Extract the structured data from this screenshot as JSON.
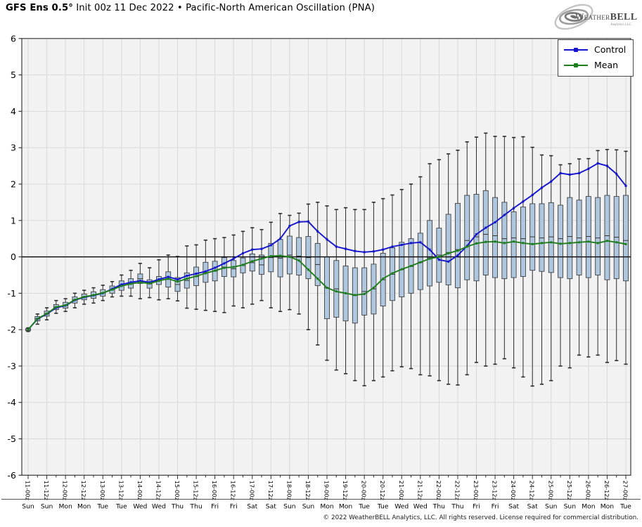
{
  "header": {
    "title_bold": "GFS Ens 0.5°",
    "title_rest": " Init 00z 11 Dec 2022 • Pacific-North American Oscillation (PNA)"
  },
  "logo": {
    "text1": "Weather",
    "text2": "BELL",
    "sub": "Analytics LLC"
  },
  "legend": {
    "items": [
      {
        "label": "Control",
        "color": "#1414cc"
      },
      {
        "label": "Mean",
        "color": "#1e7e1e"
      }
    ]
  },
  "footer": {
    "copyright": "© 2022 WeatherBELL Analytics, LLC. All rights reserved. License required for commercial distribution."
  },
  "chart_data": {
    "type": "boxplot+lines",
    "title": "GFS Ens 0.5° Init 00z 11 Dec 2022 • Pacific-North American Oscillation (PNA)",
    "ylabel": "",
    "ylim": [
      -6,
      6
    ],
    "y_ticks": [
      6,
      5,
      4,
      3,
      2,
      1,
      0,
      -1,
      -2,
      -3,
      -4,
      -5,
      -6
    ],
    "grid": true,
    "legend_position": "upper-right",
    "points_per_labeled_tick": 2,
    "x_tick_labels": [
      "11-00z",
      "11-12z",
      "12-00z",
      "12-12z",
      "13-00z",
      "13-12z",
      "14-00z",
      "14-12z",
      "15-00z",
      "15-12z",
      "16-00z",
      "16-12z",
      "17-00z",
      "17-12z",
      "18-00z",
      "18-12z",
      "19-00z",
      "19-12z",
      "20-00z",
      "20-12z",
      "21-00z",
      "21-12z",
      "22-00z",
      "22-12z",
      "23-00z",
      "23-12z",
      "24-00z",
      "24-12z",
      "25-00z",
      "25-12z",
      "26-00z",
      "26-12z",
      "27-00z"
    ],
    "x_day_labels": [
      "Sun",
      "Sun",
      "Mon",
      "Mon",
      "Tue",
      "Tue",
      "Wed",
      "Wed",
      "Thu",
      "Thu",
      "Fri",
      "Fri",
      "Sat",
      "Sat",
      "Sun",
      "Sun",
      "Mon",
      "Mon",
      "Tue",
      "Tue",
      "Wed",
      "Wed",
      "Thu",
      "Thu",
      "Fri",
      "Fri",
      "Sat",
      "Sat",
      "Sun",
      "Sun",
      "Mon",
      "Mon",
      "Tue"
    ],
    "series": [
      {
        "name": "Control",
        "color": "#1414cc",
        "values": [
          -2.0,
          -1.71,
          -1.57,
          -1.4,
          -1.34,
          -1.19,
          -1.11,
          -1.06,
          -1.0,
          -0.88,
          -0.76,
          -0.7,
          -0.66,
          -0.7,
          -0.62,
          -0.55,
          -0.62,
          -0.52,
          -0.46,
          -0.4,
          -0.3,
          -0.18,
          -0.05,
          0.1,
          0.2,
          0.22,
          0.32,
          0.5,
          0.85,
          0.96,
          0.97,
          0.7,
          0.48,
          0.28,
          0.22,
          0.16,
          0.13,
          0.15,
          0.2,
          0.28,
          0.33,
          0.38,
          0.4,
          0.2,
          -0.08,
          -0.13,
          0.04,
          0.3,
          0.62,
          0.8,
          0.95,
          1.15,
          1.34,
          1.52,
          1.7,
          1.9,
          2.07,
          2.3,
          2.26,
          2.3,
          2.42,
          2.57,
          2.5,
          2.28,
          1.95
        ]
      },
      {
        "name": "Mean",
        "color": "#1e7e1e",
        "values": [
          -2.0,
          -1.7,
          -1.56,
          -1.38,
          -1.33,
          -1.18,
          -1.1,
          -1.05,
          -0.99,
          -0.9,
          -0.8,
          -0.74,
          -0.7,
          -0.73,
          -0.66,
          -0.6,
          -0.68,
          -0.6,
          -0.53,
          -0.45,
          -0.38,
          -0.3,
          -0.28,
          -0.22,
          -0.12,
          -0.05,
          0.02,
          0.03,
          0.0,
          -0.1,
          -0.35,
          -0.6,
          -0.85,
          -0.95,
          -1.0,
          -1.05,
          -1.02,
          -0.85,
          -0.6,
          -0.45,
          -0.34,
          -0.25,
          -0.15,
          -0.05,
          0.0,
          0.1,
          0.17,
          0.28,
          0.37,
          0.41,
          0.42,
          0.38,
          0.42,
          0.38,
          0.35,
          0.38,
          0.4,
          0.36,
          0.38,
          0.4,
          0.42,
          0.38,
          0.44,
          0.4,
          0.35
        ]
      }
    ],
    "boxes": {
      "fill": "#aec6de",
      "edge": "#404040",
      "low": [
        -2.03,
        -1.76,
        -1.63,
        -1.45,
        -1.41,
        -1.27,
        -1.18,
        -1.14,
        -1.08,
        -1.0,
        -0.92,
        -0.86,
        -0.73,
        -0.86,
        -0.76,
        -0.83,
        -0.95,
        -0.86,
        -0.79,
        -0.7,
        -0.66,
        -0.54,
        -0.55,
        -0.44,
        -0.39,
        -0.48,
        -0.41,
        -0.55,
        -0.47,
        -0.5,
        -0.6,
        -0.79,
        -1.7,
        -1.66,
        -1.76,
        -1.82,
        -1.6,
        -1.57,
        -1.35,
        -1.2,
        -1.1,
        -1.0,
        -0.9,
        -0.8,
        -0.7,
        -0.77,
        -0.85,
        -0.63,
        -0.66,
        -0.5,
        -0.57,
        -0.6,
        -0.57,
        -0.54,
        -0.37,
        -0.4,
        -0.43,
        -0.57,
        -0.6,
        -0.5,
        -0.57,
        -0.5,
        -0.63,
        -0.6,
        -0.66
      ],
      "high": [
        -1.97,
        -1.64,
        -1.49,
        -1.31,
        -1.25,
        -1.1,
        -1.02,
        -0.96,
        -0.9,
        -0.8,
        -0.66,
        -0.6,
        -0.47,
        -0.63,
        -0.54,
        -0.41,
        -0.57,
        -0.44,
        -0.28,
        -0.15,
        -0.12,
        -0.02,
        -0.1,
        -0.03,
        0.08,
        0.05,
        0.37,
        0.48,
        0.57,
        0.53,
        0.56,
        0.37,
        0.0,
        -0.1,
        -0.25,
        -0.3,
        -0.3,
        -0.2,
        0.1,
        0.25,
        0.4,
        0.5,
        0.65,
        1.0,
        0.79,
        1.17,
        1.47,
        1.69,
        1.72,
        1.82,
        1.63,
        1.5,
        1.24,
        1.37,
        1.46,
        1.46,
        1.49,
        1.42,
        1.63,
        1.56,
        1.66,
        1.63,
        1.69,
        1.66,
        1.69
      ],
      "median": [
        -2.0,
        -1.7,
        -1.56,
        -1.38,
        -1.33,
        -1.18,
        -1.1,
        -1.05,
        -0.99,
        -0.9,
        -0.79,
        -0.73,
        -0.6,
        -0.74,
        -0.65,
        -0.62,
        -0.76,
        -0.65,
        -0.54,
        -0.43,
        -0.39,
        -0.28,
        -0.33,
        -0.24,
        -0.16,
        -0.22,
        -0.02,
        -0.04,
        0.05,
        0.02,
        -0.02,
        -0.21,
        -0.85,
        -0.88,
        -1.0,
        -1.06,
        -0.95,
        -0.88,
        -0.63,
        -0.48,
        -0.35,
        -0.26,
        -0.15,
        -0.03,
        0.05,
        0.12,
        0.2,
        0.45,
        0.55,
        0.62,
        0.58,
        0.5,
        0.52,
        0.5,
        0.55,
        0.52,
        0.55,
        0.5,
        0.56,
        0.52,
        0.56,
        0.52,
        0.58,
        0.54,
        0.45
      ],
      "whisker_low": [
        -2.05,
        -1.85,
        -1.73,
        -1.55,
        -1.5,
        -1.4,
        -1.3,
        -1.27,
        -1.2,
        -1.1,
        -1.08,
        -1.08,
        -1.15,
        -1.12,
        -1.18,
        -1.15,
        -1.21,
        -1.41,
        -1.44,
        -1.47,
        -1.5,
        -1.53,
        -1.35,
        -1.4,
        -1.3,
        -1.2,
        -1.4,
        -1.5,
        -1.45,
        -1.57,
        -2.0,
        -2.42,
        -2.84,
        -3.11,
        -3.21,
        -3.4,
        -3.54,
        -3.4,
        -3.3,
        -3.13,
        -3.02,
        -3.07,
        -3.24,
        -3.27,
        -3.4,
        -3.5,
        -3.52,
        -3.24,
        -2.9,
        -3.0,
        -2.95,
        -2.8,
        -3.05,
        -3.3,
        -3.55,
        -3.5,
        -3.4,
        -3.0,
        -3.05,
        -2.7,
        -2.75,
        -2.7,
        -2.9,
        -2.85,
        -2.95
      ],
      "whisker_high": [
        -1.95,
        -1.57,
        -1.4,
        -1.2,
        -1.15,
        -1.0,
        -0.92,
        -0.85,
        -0.78,
        -0.68,
        -0.5,
        -0.37,
        -0.18,
        -0.3,
        -0.08,
        0.05,
        0.01,
        0.3,
        0.33,
        0.46,
        0.5,
        0.53,
        0.6,
        0.7,
        0.8,
        0.75,
        0.95,
        1.19,
        1.14,
        1.2,
        1.45,
        1.5,
        1.4,
        1.3,
        1.35,
        1.3,
        1.3,
        1.5,
        1.6,
        1.7,
        1.85,
        2.0,
        2.2,
        2.56,
        2.67,
        2.83,
        2.93,
        3.16,
        3.29,
        3.4,
        3.31,
        3.31,
        3.28,
        3.3,
        3.01,
        2.8,
        2.78,
        2.53,
        2.56,
        2.69,
        2.7,
        2.92,
        2.95,
        2.94,
        2.9
      ]
    },
    "colors": {
      "plot_bg": "#f2f2f3",
      "grid": "#d9d9d9",
      "spine": "#2a2a2a",
      "zero_line": "#000000",
      "whisker": "#2b2b2b",
      "text": "#000000"
    }
  }
}
